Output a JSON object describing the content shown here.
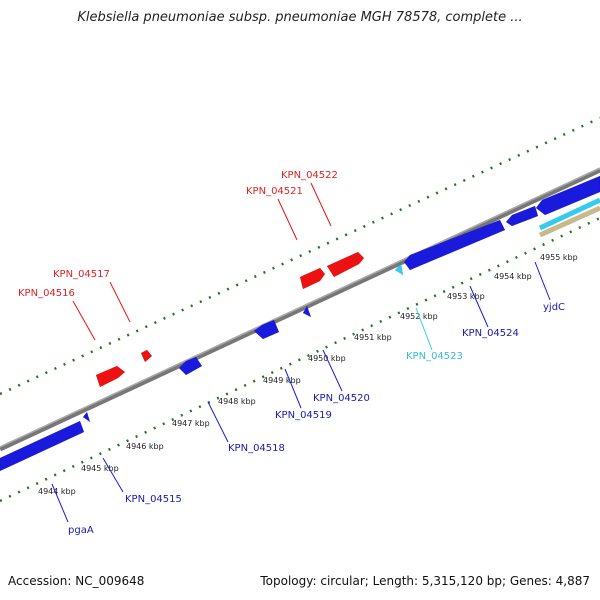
{
  "title": "Klebsiella pneumoniae subsp. pneumoniae MGH 78578, complete ...",
  "footer": {
    "accession": "Accession: NC_009648",
    "summary": "Topology: circular; Length: 5,315,120 bp; Genes: 4,887"
  },
  "colors": {
    "forward_gene": "#ee1111",
    "reverse_gene": "#1a1add",
    "highlight_gene": "#33ccee",
    "backbone": "#888888",
    "scale_dots": "#227722",
    "other_feature": "#c8b88a"
  },
  "scale_ticks": [
    "4944 kbp",
    "4945 kbp",
    "4946 kbp",
    "4947 kbp",
    "4948 kbp",
    "4949 kbp",
    "4950 kbp",
    "4951 kbp",
    "4952 kbp",
    "4953 kbp",
    "4954 kbp",
    "4955 kbp"
  ],
  "gene_labels": [
    {
      "text": "KPN_04522",
      "strand": "forward"
    },
    {
      "text": "KPN_04521",
      "strand": "forward"
    },
    {
      "text": "KPN_04517",
      "strand": "forward"
    },
    {
      "text": "KPN_04516",
      "strand": "forward"
    },
    {
      "text": "KPN_04523",
      "strand": "highlight"
    },
    {
      "text": "KPN_04524",
      "strand": "reverse"
    },
    {
      "text": "yjdC",
      "strand": "reverse"
    },
    {
      "text": "KPN_04520",
      "strand": "reverse"
    },
    {
      "text": "KPN_04519",
      "strand": "reverse"
    },
    {
      "text": "KPN_04518",
      "strand": "reverse"
    },
    {
      "text": "KPN_04515",
      "strand": "reverse"
    },
    {
      "text": "pgaA",
      "strand": "reverse"
    }
  ]
}
